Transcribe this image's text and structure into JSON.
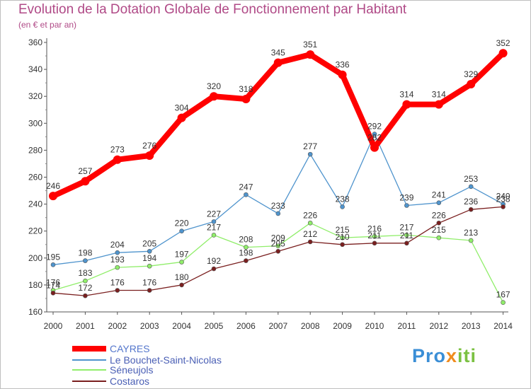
{
  "title": "Evolution de la Dotation Globale de Fonctionnement par Habitant",
  "subtitle": "(en € et par an)",
  "brand": {
    "part1": "Pro",
    "part2": "x",
    "part3": "iti"
  },
  "colors": {
    "title": "#b04a87",
    "cayres": "#ff0000",
    "bouchet": "#4f94cd",
    "seneujols": "#90ee6a",
    "costaros": "#7a1f1f",
    "axis": "#333333"
  },
  "chart_data": {
    "type": "line",
    "title": "Evolution de la Dotation Globale de Fonctionnement par Habitant",
    "subtitle": "(en € et par an)",
    "xlabel": "",
    "ylabel": "",
    "x": [
      2000,
      2001,
      2002,
      2003,
      2004,
      2005,
      2006,
      2007,
      2008,
      2009,
      2010,
      2011,
      2012,
      2013,
      2014
    ],
    "ylim": [
      160,
      360
    ],
    "yticks": [
      160,
      180,
      200,
      220,
      240,
      260,
      280,
      300,
      320,
      340,
      360
    ],
    "legend_position": "bottom-left",
    "series": [
      {
        "name": "CAYRES",
        "color": "#ff0000",
        "width": 8,
        "marker": 6,
        "values": [
          246,
          257,
          273,
          276,
          304,
          320,
          318,
          345,
          351,
          336,
          282,
          314,
          314,
          329,
          352
        ],
        "labels": [
          246,
          257,
          273,
          276,
          304,
          320,
          318,
          345,
          351,
          336,
          282,
          314,
          314,
          329,
          352
        ]
      },
      {
        "name": "Le Bouchet-Saint-Nicolas",
        "color": "#4f94cd",
        "width": 1.3,
        "marker": 3,
        "values": [
          195,
          198,
          204,
          205,
          220,
          227,
          247,
          233,
          277,
          238,
          292,
          239,
          241,
          253,
          240
        ],
        "labels": [
          195,
          198,
          204,
          205,
          220,
          227,
          247,
          233,
          277,
          238,
          292,
          239,
          241,
          253,
          240
        ]
      },
      {
        "name": "Séneujols",
        "color": "#90ee6a",
        "width": 1.3,
        "marker": 3,
        "values": [
          176,
          183,
          193,
          194,
          197,
          217,
          208,
          209,
          226,
          215,
          216,
          217,
          215,
          213,
          167
        ],
        "labels": [
          176,
          183,
          193,
          194,
          197,
          217,
          208,
          209,
          226,
          215,
          216,
          217,
          215,
          213,
          167
        ]
      },
      {
        "name": "Costaros",
        "color": "#7a1f1f",
        "width": 1.3,
        "marker": 3,
        "values": [
          174,
          172,
          176,
          176,
          180,
          192,
          198,
          205,
          212,
          210,
          211,
          211,
          226,
          236,
          238
        ],
        "labels": [
          174,
          172,
          176,
          176,
          180,
          192,
          198,
          205,
          212,
          210,
          211,
          211,
          226,
          236,
          238
        ]
      }
    ]
  }
}
